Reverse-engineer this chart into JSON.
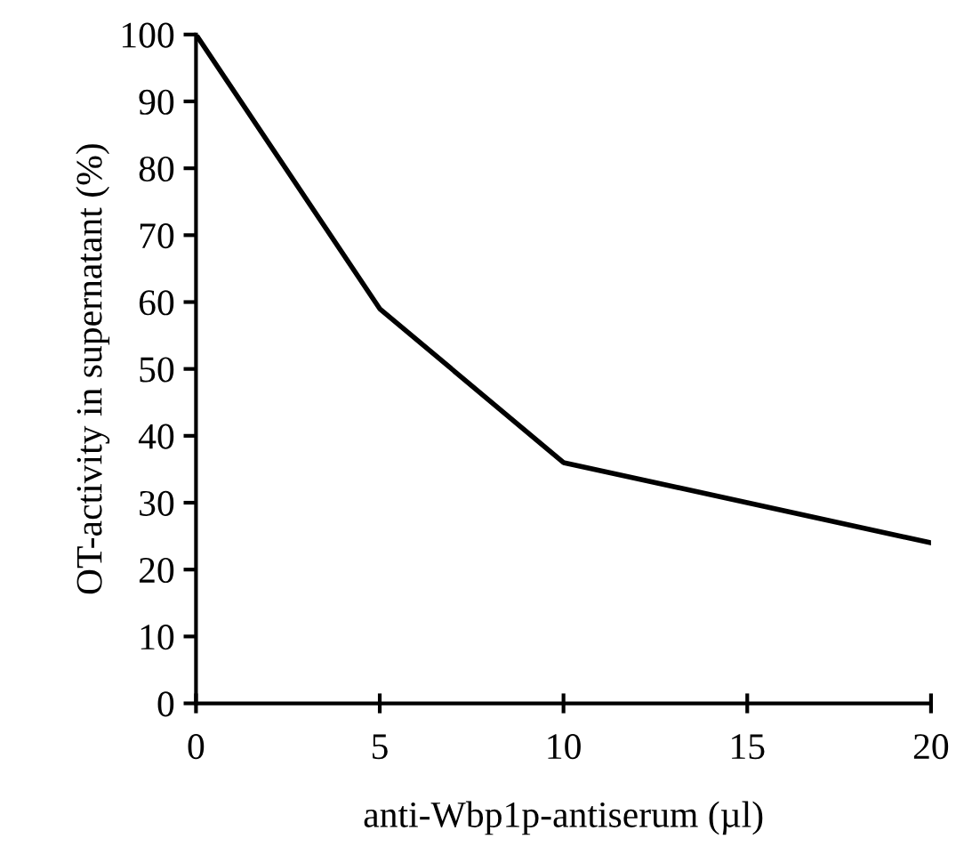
{
  "chart_data": {
    "type": "line",
    "xlabel": "anti-Wbp1p-antiserum (µl)",
    "ylabel": "OT-activity in supernatant (%)",
    "x": [
      0,
      5,
      10,
      15,
      20
    ],
    "series": [
      {
        "color": "#000000",
        "values": [
          100,
          59,
          36,
          30,
          24
        ]
      }
    ],
    "xlim": [
      0,
      20
    ],
    "ylim": [
      0,
      100
    ],
    "xticks": [
      0,
      5,
      10,
      15,
      20
    ],
    "yticks": [
      0,
      10,
      20,
      30,
      40,
      50,
      60,
      70,
      80,
      90,
      100
    ],
    "grid": false,
    "marker": "none",
    "line_style": "solid"
  }
}
